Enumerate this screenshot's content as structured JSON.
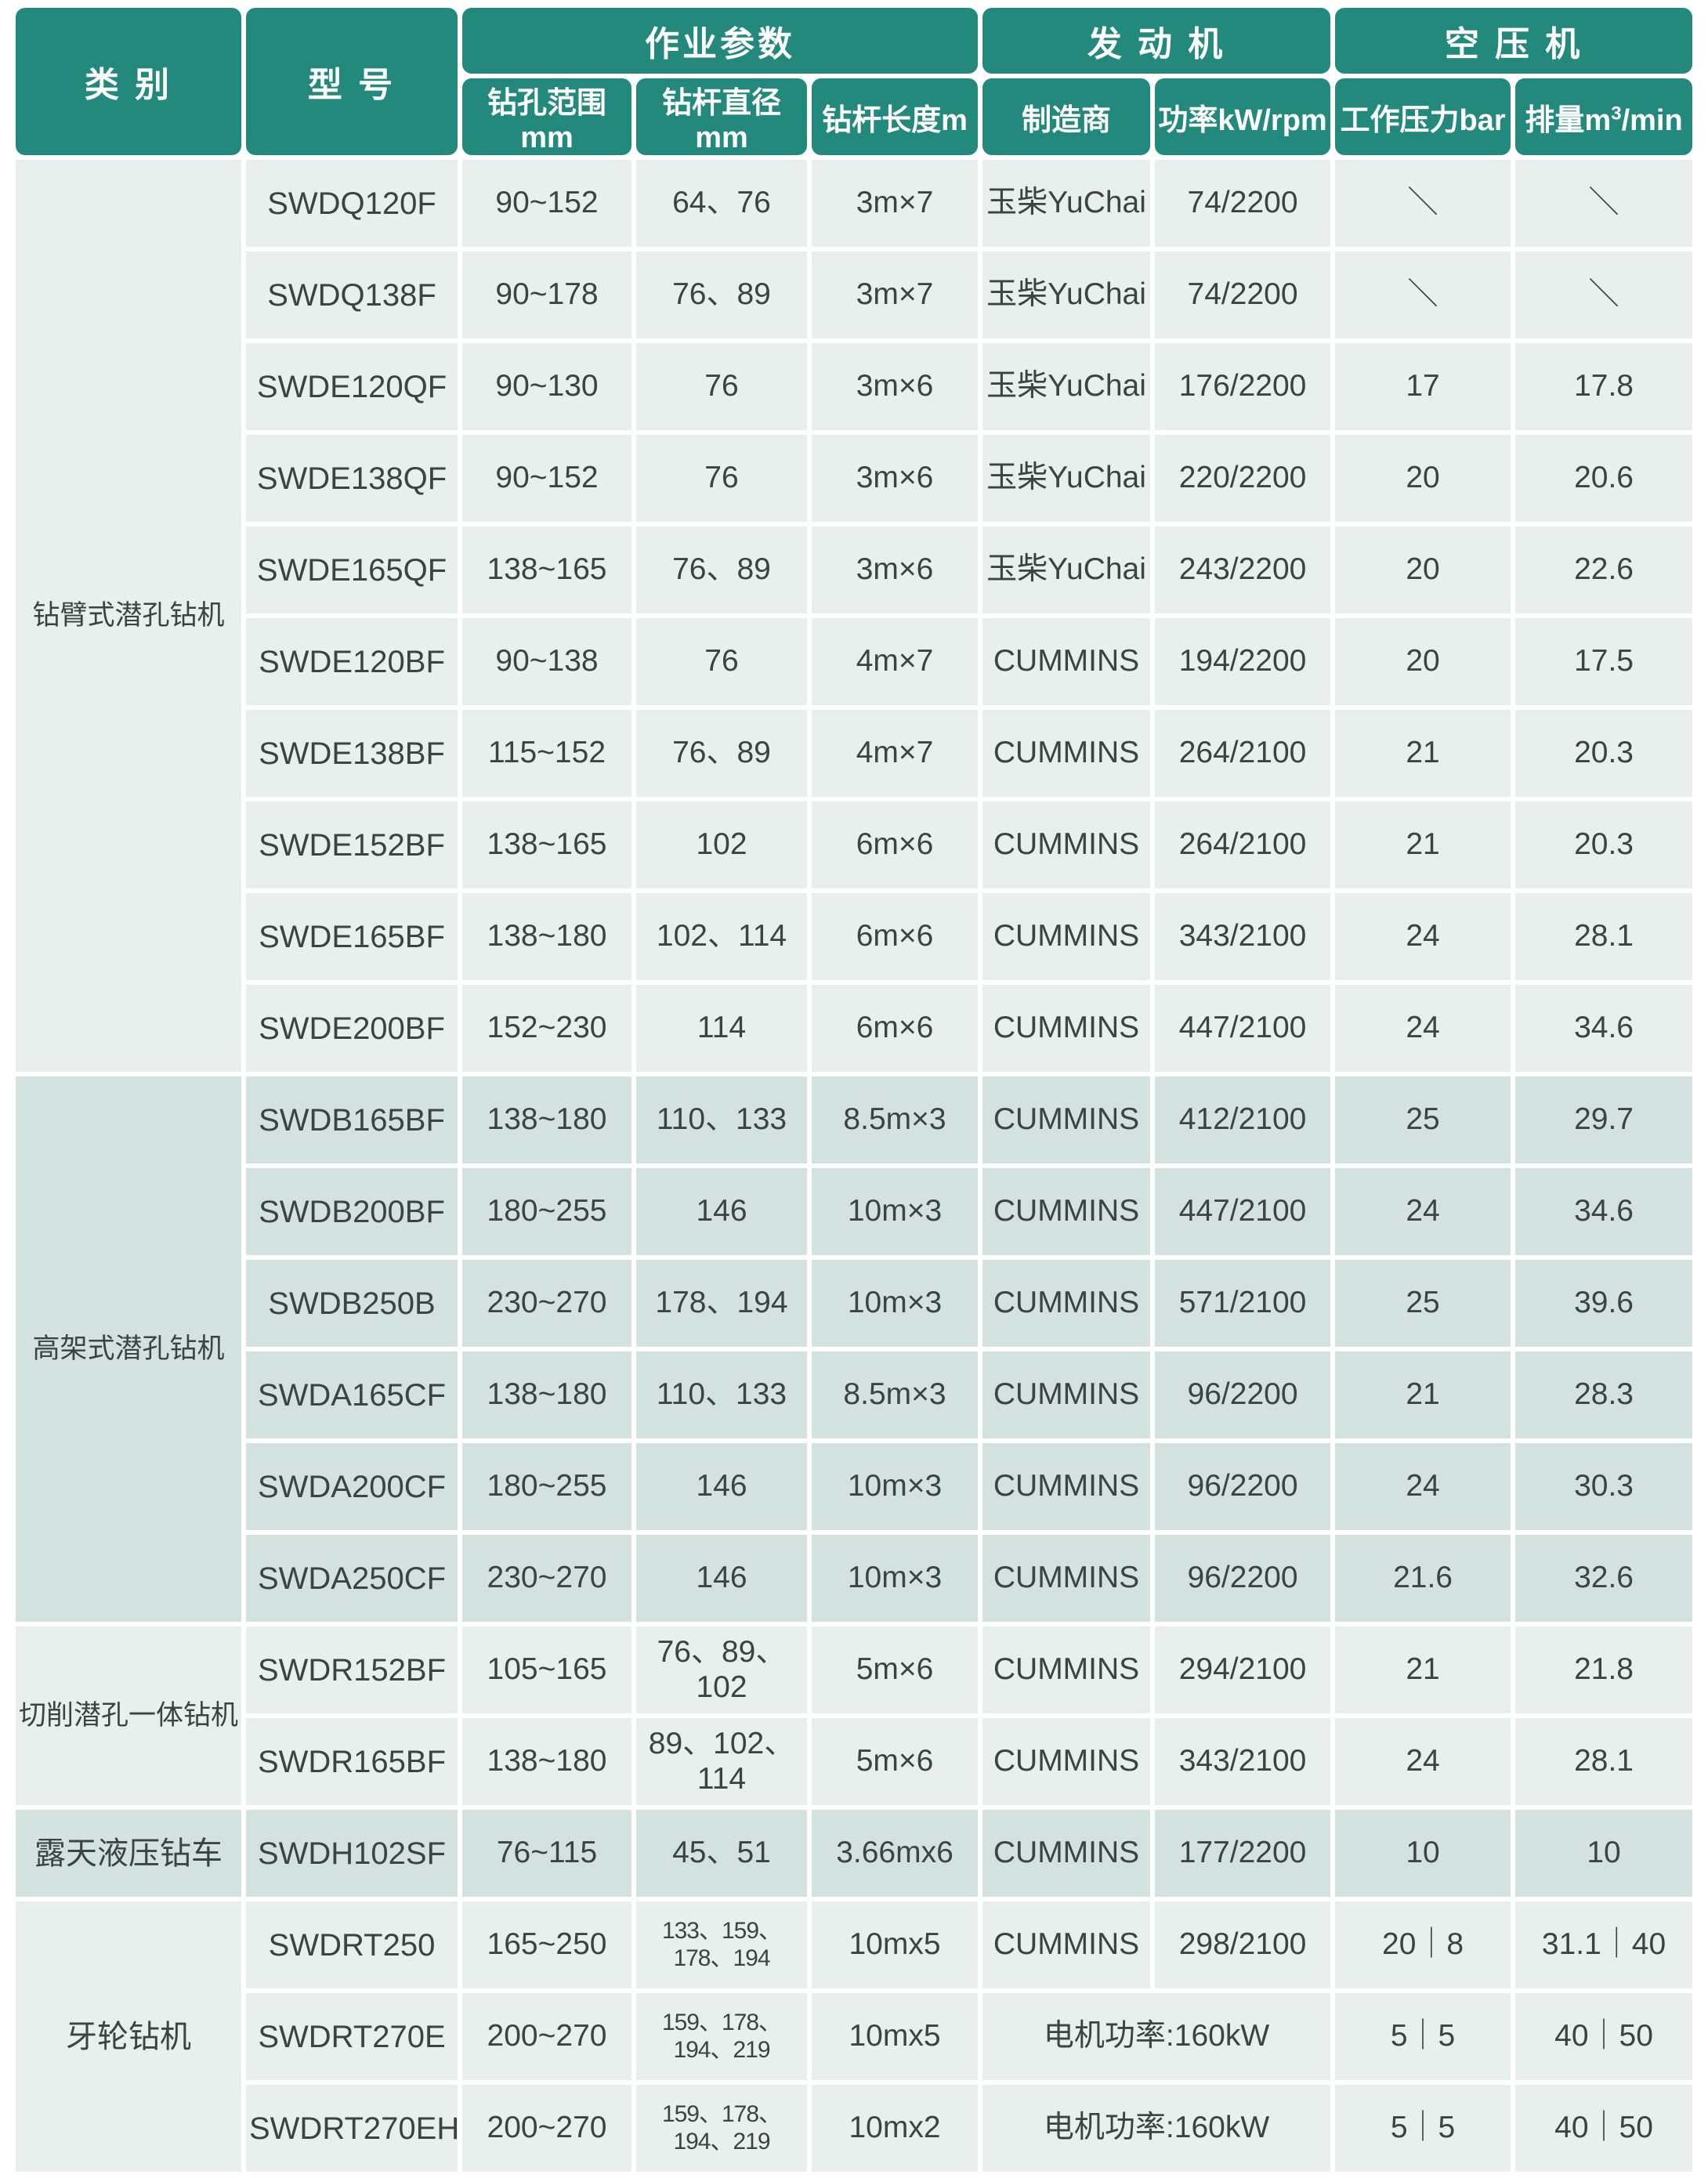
{
  "colors": {
    "header_bg": "#23897d",
    "header_text": "#ffffff",
    "row_light_bg": "#e8efed",
    "row_dark_bg": "#d3e2de",
    "cell_text": "#3d4341",
    "gap": "#ffffff"
  },
  "header": {
    "category": "类 别",
    "model": "型 号",
    "groups": [
      {
        "label": "作业参数",
        "colspan": 3
      },
      {
        "label": "发 动 机",
        "colspan": 2
      },
      {
        "label": "空 压 机",
        "colspan": 2
      }
    ],
    "subheaders": [
      {
        "text": "钻孔范围mm"
      },
      {
        "text": "钻杆直径mm"
      },
      {
        "text": "钻杆长度m"
      },
      {
        "text": "制造商"
      },
      {
        "text": "功率kW/rpm"
      },
      {
        "text": "工作压力bar"
      },
      {
        "text": "排量m",
        "sup": "3",
        "suffix": "/min"
      }
    ]
  },
  "groups": [
    {
      "category": "钻臂式潜孔钻机",
      "shade": "light",
      "rows": [
        [
          "SWDQ120F",
          "90~152",
          "64、76",
          "3m×7",
          "玉柴YuChai",
          "74/2200",
          "＼",
          "＼"
        ],
        [
          "SWDQ138F",
          "90~178",
          "76、89",
          "3m×7",
          "玉柴YuChai",
          "74/2200",
          "＼",
          "＼"
        ],
        [
          "SWDE120QF",
          "90~130",
          "76",
          "3m×6",
          "玉柴YuChai",
          "176/2200",
          "17",
          "17.8"
        ],
        [
          "SWDE138QF",
          "90~152",
          "76",
          "3m×6",
          "玉柴YuChai",
          "220/2200",
          "20",
          "20.6"
        ],
        [
          "SWDE165QF",
          "138~165",
          "76、89",
          "3m×6",
          "玉柴YuChai",
          "243/2200",
          "20",
          "22.6"
        ],
        [
          "SWDE120BF",
          "90~138",
          "76",
          "4m×7",
          "CUMMINS",
          "194/2200",
          "20",
          "17.5"
        ],
        [
          "SWDE138BF",
          "115~152",
          "76、89",
          "4m×7",
          "CUMMINS",
          "264/2100",
          "21",
          "20.3"
        ],
        [
          "SWDE152BF",
          "138~165",
          "102",
          "6m×6",
          "CUMMINS",
          "264/2100",
          "21",
          "20.3"
        ],
        [
          "SWDE165BF",
          "138~180",
          "102、114",
          "6m×6",
          "CUMMINS",
          "343/2100",
          "24",
          "28.1"
        ],
        [
          "SWDE200BF",
          "152~230",
          "114",
          "6m×6",
          "CUMMINS",
          "447/2100",
          "24",
          "34.6"
        ]
      ]
    },
    {
      "category": "高架式潜孔钻机",
      "shade": "dark",
      "rows": [
        [
          "SWDB165BF",
          "138~180",
          "110、133",
          "8.5m×3",
          "CUMMINS",
          "412/2100",
          "25",
          "29.7"
        ],
        [
          "SWDB200BF",
          "180~255",
          "146",
          "10m×3",
          "CUMMINS",
          "447/2100",
          "24",
          "34.6"
        ],
        [
          "SWDB250B",
          "230~270",
          "178、194",
          "10m×3",
          "CUMMINS",
          "571/2100",
          "25",
          "39.6"
        ],
        [
          "SWDA165CF",
          "138~180",
          "110、133",
          "8.5m×3",
          "CUMMINS",
          "96/2200",
          "21",
          "28.3"
        ],
        [
          "SWDA200CF",
          "180~255",
          "146",
          "10m×3",
          "CUMMINS",
          "96/2200",
          "24",
          "30.3"
        ],
        [
          "SWDA250CF",
          "230~270",
          "146",
          "10m×3",
          "CUMMINS",
          "96/2200",
          "21.6",
          "32.6"
        ]
      ]
    },
    {
      "category": "切削潜孔一体钻机",
      "shade": "light",
      "rows": [
        [
          "SWDR152BF",
          "105~165",
          "76、89、102",
          "5m×6",
          "CUMMINS",
          "294/2100",
          "21",
          "21.8"
        ],
        [
          "SWDR165BF",
          "138~180",
          "89、102、114",
          "5m×6",
          "CUMMINS",
          "343/2100",
          "24",
          "28.1"
        ]
      ]
    },
    {
      "category": "露天液压钻车",
      "shade": "dark",
      "rows": [
        [
          "SWDH102SF",
          "76~115",
          "45、51",
          "3.66mx6",
          "CUMMINS",
          "177/2200",
          "10",
          "10"
        ]
      ]
    },
    {
      "category": "牙轮钻机",
      "shade": "light",
      "rows": [
        [
          "SWDRT250",
          "165~250",
          {
            "text": "133、159、178、194",
            "small": true
          },
          "10mx5",
          "CUMMINS",
          "298/2100",
          "20｜8",
          "31.1｜40"
        ],
        [
          "SWDRT270E",
          "200~270",
          {
            "text": "159、178、194、219",
            "small": true
          },
          "10mx5",
          {
            "text": "电机功率:160kW",
            "colspan": 2
          },
          "5｜5",
          "40｜50"
        ],
        [
          "SWDRT270EH",
          "200~270",
          {
            "text": "159、178、194、219",
            "small": true
          },
          "10mx2",
          {
            "text": "电机功率:160kW",
            "colspan": 2
          },
          "5｜5",
          "40｜50"
        ]
      ]
    }
  ]
}
